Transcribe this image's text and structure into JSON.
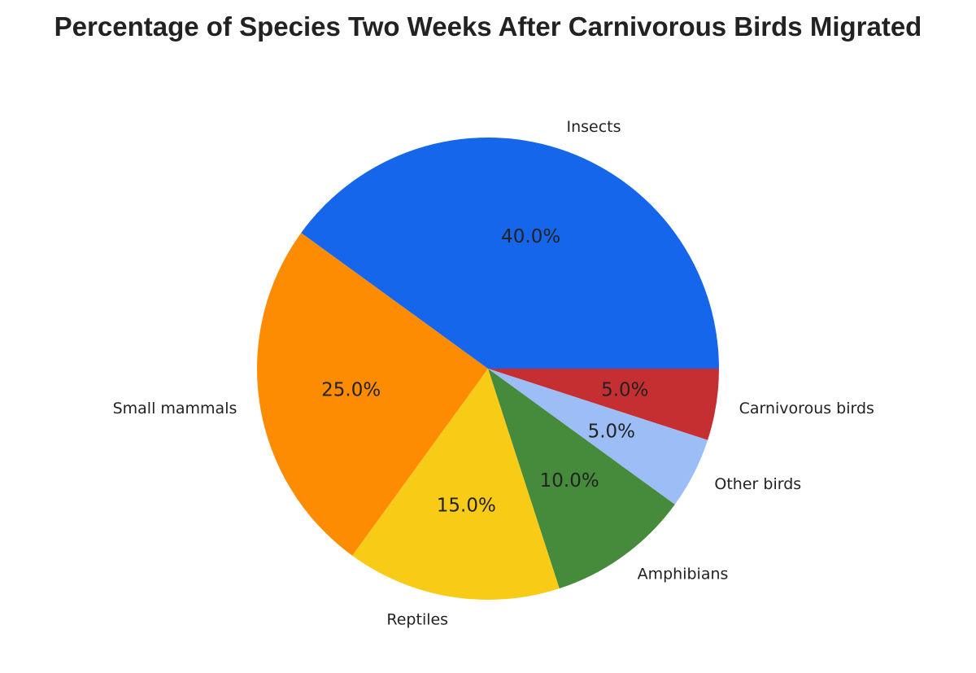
{
  "chart_data": {
    "type": "pie",
    "title": "Percentage of Species Two Weeks After Carnivorous Birds Migrated",
    "slices": [
      {
        "label": "Carnivorous birds",
        "value": 5.0,
        "display": "5.0%",
        "color": "#c62f32"
      },
      {
        "label": "Other birds",
        "value": 5.0,
        "display": "5.0%",
        "color": "#9cbdf6"
      },
      {
        "label": "Amphibians",
        "value": 10.0,
        "display": "10.0%",
        "color": "#468a3b"
      },
      {
        "label": "Reptiles",
        "value": 15.0,
        "display": "15.0%",
        "color": "#f8cb17"
      },
      {
        "label": "Small mammals",
        "value": 25.0,
        "display": "25.0%",
        "color": "#fe8c02"
      },
      {
        "label": "Insects",
        "value": 40.0,
        "display": "40.0%",
        "color": "#1666eb"
      }
    ],
    "legend": "none"
  }
}
